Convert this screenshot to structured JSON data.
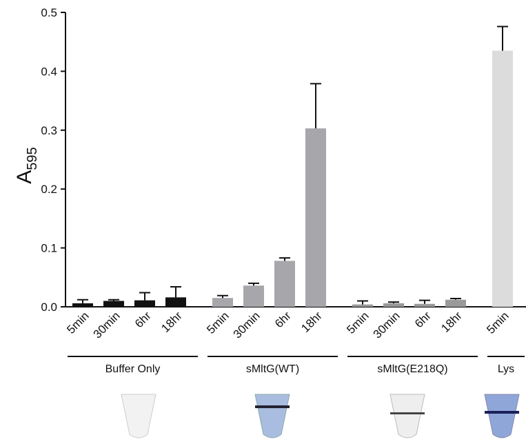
{
  "chart_data": {
    "type": "bar",
    "y_label": "A",
    "y_label_subscript": "595",
    "ylim": [
      0,
      0.5
    ],
    "yticks": [
      {
        "value": 0,
        "label": "0.0"
      },
      0.1,
      0.2,
      0.3,
      0.4,
      0.5
    ],
    "groups": [
      {
        "name": "Buffer Only",
        "color": "#111111",
        "categories": [
          "5min",
          "30min",
          "6hr",
          "18hr"
        ],
        "values": [
          0.006,
          0.01,
          0.011,
          0.016
        ],
        "errors": [
          0.006,
          0.002,
          0.013,
          0.018
        ]
      },
      {
        "name": "sMltG(WT)",
        "color": "#a6a6ab",
        "categories": [
          "5min",
          "30min",
          "6hr",
          "18hr"
        ],
        "values": [
          0.015,
          0.036,
          0.078,
          0.303
        ],
        "errors": [
          0.004,
          0.004,
          0.005,
          0.076
        ]
      },
      {
        "name": "sMltG(E218Q)",
        "color": "#9a9a9a",
        "categories": [
          "5min",
          "30min",
          "6hr",
          "18hr"
        ],
        "values": [
          0.004,
          0.006,
          0.005,
          0.012
        ],
        "errors": [
          0.006,
          0.002,
          0.006,
          0.002
        ]
      },
      {
        "name": "Lys",
        "color": "#dcdcdc",
        "categories": [
          "5min"
        ],
        "values": [
          0.435
        ],
        "errors": [
          0.041
        ]
      }
    ]
  }
}
